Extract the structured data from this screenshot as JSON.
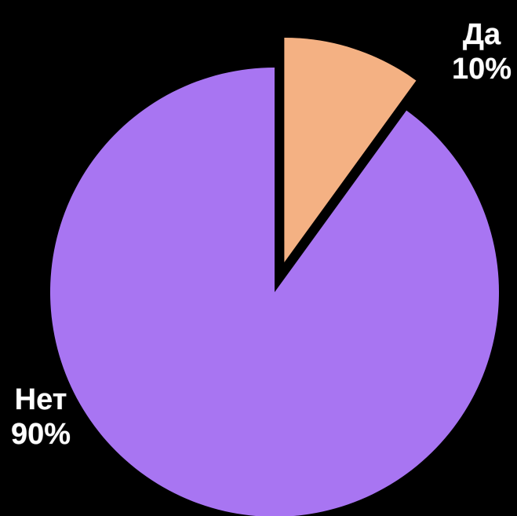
{
  "chart_data": {
    "type": "pie",
    "title": "",
    "start_angle_deg": 0,
    "direction": "clockwise",
    "slices": [
      {
        "label": "Да",
        "value": 10,
        "value_label": "10%",
        "color": "#F4B183",
        "exploded": true
      },
      {
        "label": "Нет",
        "value": 90,
        "value_label": "90%",
        "color": "#A875F2",
        "exploded": false
      }
    ],
    "legend": "none",
    "background": "#000000"
  }
}
